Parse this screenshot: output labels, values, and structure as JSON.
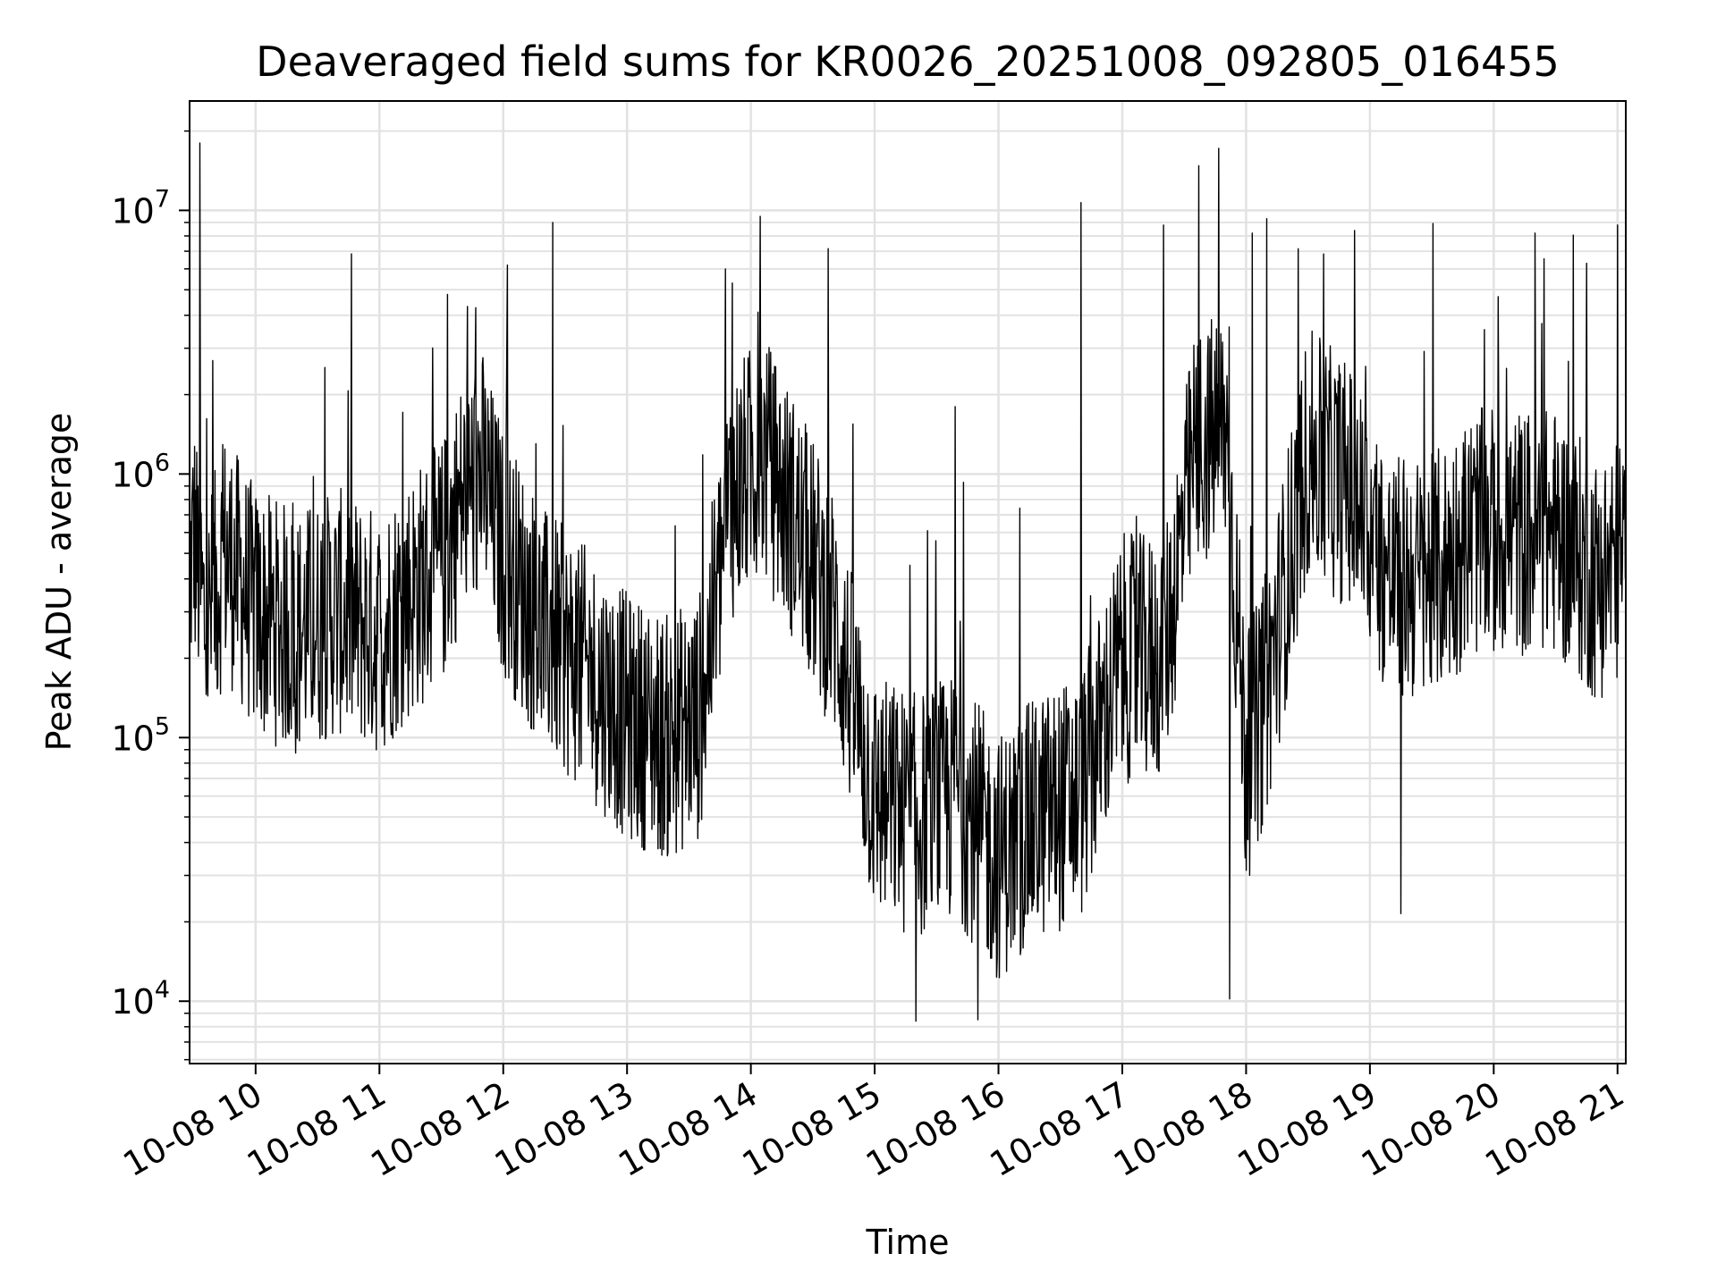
{
  "chart_data": {
    "type": "line",
    "title": "Deaveraged field sums for KR0026_20251008_092805_016455",
    "xlabel": "Time",
    "ylabel": "Peak ADU - average",
    "yscale": "log",
    "grid": true,
    "ylim": [
      5800,
      26000000
    ],
    "xlim": [
      "2025-10-08T09:28",
      "2025-10-08T21:04"
    ],
    "line_color": "#000000",
    "x_ticks": [
      "10-08 10",
      "10-08 11",
      "10-08 12",
      "10-08 13",
      "10-08 14",
      "10-08 15",
      "10-08 16",
      "10-08 17",
      "10-08 18",
      "10-08 19",
      "10-08 20",
      "10-08 21"
    ],
    "y_ticks": [
      {
        "base": "10",
        "exp": "4",
        "value": 10000
      },
      {
        "base": "10",
        "exp": "5",
        "value": 100000
      },
      {
        "base": "10",
        "exp": "6",
        "value": 1000000
      },
      {
        "base": "10",
        "exp": "7",
        "value": 10000000
      }
    ],
    "series": [
      {
        "name": "",
        "x": [
          "2025-10-08T09:28",
          "2025-10-08T09:30",
          "2025-10-08T09:36",
          "2025-10-08T09:45",
          "2025-10-08T10:00",
          "2025-10-08T10:20",
          "2025-10-08T10:40",
          "2025-10-08T11:00",
          "2025-10-08T11:15",
          "2025-10-08T11:30",
          "2025-10-08T11:40",
          "2025-10-08T11:50",
          "2025-10-08T12:00",
          "2025-10-08T12:20",
          "2025-10-08T12:40",
          "2025-10-08T13:00",
          "2025-10-08T13:20",
          "2025-10-08T13:35",
          "2025-10-08T13:50",
          "2025-10-08T14:05",
          "2025-10-08T14:20",
          "2025-10-08T14:40",
          "2025-10-08T15:00",
          "2025-10-08T15:20",
          "2025-10-08T15:40",
          "2025-10-08T16:00",
          "2025-10-08T16:20",
          "2025-10-08T16:40",
          "2025-10-08T17:00",
          "2025-10-08T17:20",
          "2025-10-08T17:35",
          "2025-10-08T17:50",
          "2025-10-08T18:00",
          "2025-10-08T18:10",
          "2025-10-08T18:30",
          "2025-10-08T18:50",
          "2025-10-08T19:10",
          "2025-10-08T19:30",
          "2025-10-08T19:50",
          "2025-10-08T20:10",
          "2025-10-08T20:30",
          "2025-10-08T20:50",
          "2025-10-08T21:04"
        ],
        "y": [
          400000,
          600000,
          250000,
          500000,
          300000,
          250000,
          300000,
          250000,
          350000,
          450000,
          800000,
          1000000,
          500000,
          250000,
          180000,
          120000,
          100000,
          120000,
          800000,
          1200000,
          700000,
          300000,
          60000,
          50000,
          60000,
          35000,
          50000,
          60000,
          200000,
          200000,
          1200000,
          1500000,
          80000,
          150000,
          1200000,
          900000,
          400000,
          400000,
          600000,
          600000,
          600000,
          400000,
          500000
        ]
      }
    ],
    "spikes": [
      {
        "x": "2025-10-08T09:33",
        "y": 18000000
      },
      {
        "x": "2025-10-08T11:33",
        "y": 4800000
      },
      {
        "x": "2025-10-08T12:02",
        "y": 6200000
      },
      {
        "x": "2025-10-08T12:24",
        "y": 9000000
      },
      {
        "x": "2025-10-08T13:51",
        "y": 5300000
      },
      {
        "x": "2025-10-08T15:39",
        "y": 1800000
      },
      {
        "x": "2025-10-08T16:40",
        "y": 10700000
      },
      {
        "x": "2025-10-08T17:20",
        "y": 8800000
      },
      {
        "x": "2025-10-08T18:03",
        "y": 8200000
      },
      {
        "x": "2025-10-08T18:10",
        "y": 9300000
      },
      {
        "x": "2025-10-08T20:20",
        "y": 8200000
      },
      {
        "x": "2025-10-08T20:45",
        "y": 6300000
      },
      {
        "x": "2025-10-08T21:00",
        "y": 8800000
      }
    ],
    "dips": [
      {
        "x": "2025-10-08T15:20",
        "y": 8400
      },
      {
        "x": "2025-10-08T15:50",
        "y": 8500
      },
      {
        "x": "2025-10-08T17:52",
        "y": 10200
      },
      {
        "x": "2025-10-08T19:15",
        "y": 21500
      }
    ]
  }
}
